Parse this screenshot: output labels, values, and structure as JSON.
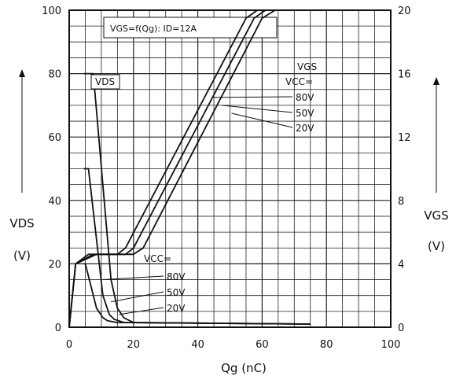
{
  "chart_data": {
    "type": "line",
    "title": "VGS=f(Qg): ID=12A",
    "xlabel": "Qg (nC)",
    "ylabel_left": [
      "VDS",
      "(V)"
    ],
    "ylabel_right": [
      "VGS",
      "(V)"
    ],
    "xlim": [
      0,
      100
    ],
    "ylim_left": [
      0,
      100
    ],
    "ylim_right": [
      0,
      20
    ],
    "x_ticks": [
      "0",
      "20",
      "40",
      "60",
      "80",
      "100"
    ],
    "y_left_ticks": [
      "0",
      "20",
      "40",
      "60",
      "80",
      "100"
    ],
    "y_right_ticks": [
      "0",
      "4",
      "8",
      "12",
      "16",
      "20"
    ],
    "grid": true,
    "annotations": {
      "vds_label": "VDS",
      "vgs_label": "VGS",
      "vcc_upper": "VCC=",
      "vcc_lower": "VCC="
    },
    "series": [
      {
        "name": "80V",
        "group": "VGS",
        "axis": "right",
        "x": [
          0,
          2,
          8.5,
          20,
          23,
          60,
          64
        ],
        "y": [
          0,
          4,
          4.6,
          4.6,
          5.0,
          19.5,
          20
        ]
      },
      {
        "name": "50V",
        "group": "VGS",
        "axis": "right",
        "x": [
          0,
          2,
          7.5,
          17.5,
          20,
          57.5,
          61
        ],
        "y": [
          0,
          4,
          4.6,
          4.6,
          5.0,
          19.5,
          20
        ]
      },
      {
        "name": "20V",
        "group": "VGS",
        "axis": "right",
        "x": [
          0,
          2,
          6,
          15,
          17.5,
          55,
          58.5
        ],
        "y": [
          0,
          4,
          4.6,
          4.6,
          5.0,
          19.5,
          20
        ]
      },
      {
        "name": "80V",
        "group": "VDS",
        "axis": "left",
        "x": [
          4.5,
          7.5,
          13,
          15,
          17,
          20,
          75
        ],
        "y": [
          80,
          80,
          15,
          6,
          3,
          1.5,
          1
        ]
      },
      {
        "name": "50V",
        "group": "VDS",
        "axis": "left",
        "x": [
          4.5,
          6,
          10.5,
          12.5,
          14,
          17,
          75
        ],
        "y": [
          50,
          50,
          10,
          4,
          2.5,
          1.5,
          1
        ]
      },
      {
        "name": "20V",
        "group": "VDS",
        "axis": "left",
        "x": [
          4.5,
          5,
          8.5,
          10.5,
          12,
          15,
          75
        ],
        "y": [
          20,
          20,
          6,
          3,
          2,
          1.5,
          1
        ]
      }
    ]
  }
}
